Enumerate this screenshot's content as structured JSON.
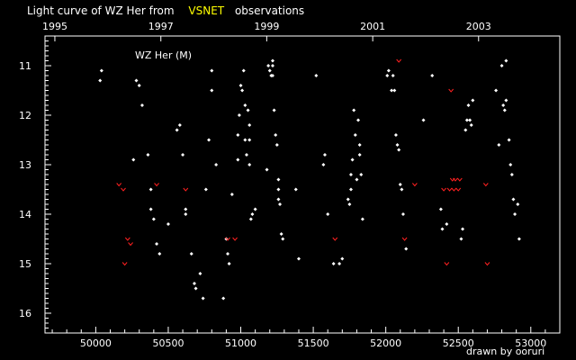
{
  "title": {
    "prefix": "Light curve of WZ Her from",
    "highlight": "VSNET",
    "suffix": "observations",
    "highlight_color": "#ffff00"
  },
  "credit": {
    "text": "drawn by ooruri",
    "color": "#00ffff"
  },
  "colors": {
    "frame": "#ffffff",
    "visual": "#ffffff",
    "fainter_than": "#ff2020"
  },
  "chart_data": {
    "type": "scatter",
    "title": "WZ Her (M)",
    "xlabel": "",
    "ylabel": "",
    "xlim": [
      49650,
      53200
    ],
    "ylim": [
      16.4,
      10.4
    ],
    "y_inverted": true,
    "x_ticks": [
      50000,
      50500,
      51000,
      51500,
      52000,
      52500,
      53000
    ],
    "x_tick_labels": [
      "50000",
      "50500",
      "51000",
      "51500",
      "52000",
      "52500",
      "53000"
    ],
    "y_ticks": [
      11,
      12,
      13,
      14,
      15,
      16
    ],
    "y_tick_labels": [
      "11",
      "12",
      "13",
      "14",
      "15",
      "16"
    ],
    "top_axis": {
      "ticks": [
        49718,
        50449,
        51179,
        51910,
        52640
      ],
      "labels": [
        "1995",
        "1997",
        "1999",
        "2001",
        "2003"
      ]
    },
    "grid": false,
    "legend": "none",
    "series": [
      {
        "kind": "visual",
        "color": "#ffffff",
        "points": [
          [
            50030,
            11.3
          ],
          [
            50040,
            11.1
          ],
          [
            50260,
            12.9
          ],
          [
            50280,
            11.3
          ],
          [
            50300,
            11.4
          ],
          [
            50320,
            11.8
          ],
          [
            50360,
            12.8
          ],
          [
            50380,
            13.5
          ],
          [
            50380,
            13.9
          ],
          [
            50400,
            14.1
          ],
          [
            50420,
            14.6
          ],
          [
            50440,
            14.8
          ],
          [
            50500,
            14.2
          ],
          [
            50560,
            12.3
          ],
          [
            50580,
            12.2
          ],
          [
            50600,
            12.8
          ],
          [
            50620,
            13.9
          ],
          [
            50620,
            14.0
          ],
          [
            50660,
            14.8
          ],
          [
            50680,
            15.4
          ],
          [
            50690,
            15.5
          ],
          [
            50720,
            15.2
          ],
          [
            50740,
            15.7
          ],
          [
            50760,
            13.5
          ],
          [
            50780,
            12.5
          ],
          [
            50800,
            11.5
          ],
          [
            50800,
            11.1
          ],
          [
            50830,
            13.0
          ],
          [
            50880,
            15.7
          ],
          [
            50900,
            14.5
          ],
          [
            50910,
            14.8
          ],
          [
            50920,
            15.0
          ],
          [
            50940,
            13.6
          ],
          [
            50980,
            12.9
          ],
          [
            50980,
            12.4
          ],
          [
            50990,
            12.0
          ],
          [
            51000,
            11.4
          ],
          [
            51010,
            11.5
          ],
          [
            51020,
            11.1
          ],
          [
            51030,
            12.5
          ],
          [
            51030,
            11.8
          ],
          [
            51040,
            12.8
          ],
          [
            51050,
            11.9
          ],
          [
            51060,
            12.5
          ],
          [
            51060,
            12.2
          ],
          [
            51060,
            13.0
          ],
          [
            51070,
            14.1
          ],
          [
            51080,
            14.0
          ],
          [
            51100,
            13.9
          ],
          [
            51180,
            13.1
          ],
          [
            51190,
            11.0
          ],
          [
            51200,
            11.1
          ],
          [
            51210,
            11.2
          ],
          [
            51220,
            10.9
          ],
          [
            51220,
            11.0
          ],
          [
            51220,
            11.2
          ],
          [
            51230,
            11.9
          ],
          [
            51240,
            12.4
          ],
          [
            51250,
            12.6
          ],
          [
            51260,
            13.5
          ],
          [
            51260,
            13.7
          ],
          [
            51260,
            13.3
          ],
          [
            51270,
            13.8
          ],
          [
            51280,
            14.4
          ],
          [
            51290,
            14.5
          ],
          [
            51380,
            13.5
          ],
          [
            51400,
            14.9
          ],
          [
            51520,
            11.2
          ],
          [
            51570,
            13.0
          ],
          [
            51580,
            12.8
          ],
          [
            51600,
            14.0
          ],
          [
            51640,
            15.0
          ],
          [
            51680,
            15.0
          ],
          [
            51700,
            14.9
          ],
          [
            51740,
            13.7
          ],
          [
            51750,
            13.8
          ],
          [
            51760,
            13.2
          ],
          [
            51760,
            13.5
          ],
          [
            51770,
            12.9
          ],
          [
            51780,
            11.9
          ],
          [
            51790,
            12.4
          ],
          [
            51800,
            13.3
          ],
          [
            51810,
            12.1
          ],
          [
            51820,
            12.6
          ],
          [
            51820,
            12.8
          ],
          [
            51830,
            13.2
          ],
          [
            51840,
            14.1
          ],
          [
            52010,
            11.2
          ],
          [
            52020,
            11.1
          ],
          [
            52040,
            11.5
          ],
          [
            52050,
            11.2
          ],
          [
            52060,
            11.5
          ],
          [
            52070,
            12.4
          ],
          [
            52080,
            12.6
          ],
          [
            52090,
            12.7
          ],
          [
            52100,
            13.4
          ],
          [
            52110,
            13.5
          ],
          [
            52120,
            14.0
          ],
          [
            52140,
            14.7
          ],
          [
            52260,
            12.1
          ],
          [
            52320,
            11.2
          ],
          [
            52380,
            13.9
          ],
          [
            52390,
            14.3
          ],
          [
            52420,
            14.2
          ],
          [
            52520,
            14.5
          ],
          [
            52530,
            14.3
          ],
          [
            52550,
            12.3
          ],
          [
            52560,
            12.1
          ],
          [
            52570,
            11.8
          ],
          [
            52580,
            12.1
          ],
          [
            52590,
            12.2
          ],
          [
            52600,
            11.7
          ],
          [
            52760,
            11.5
          ],
          [
            52780,
            12.6
          ],
          [
            52800,
            11.0
          ],
          [
            52810,
            11.8
          ],
          [
            52820,
            11.9
          ],
          [
            52830,
            10.9
          ],
          [
            52830,
            11.7
          ],
          [
            52850,
            12.5
          ],
          [
            52860,
            13.0
          ],
          [
            52870,
            13.2
          ],
          [
            52880,
            13.7
          ],
          [
            52890,
            14.0
          ],
          [
            52910,
            13.8
          ],
          [
            52920,
            14.5
          ]
        ]
      },
      {
        "kind": "fainter_than",
        "color": "#ff2020",
        "points": [
          [
            50160,
            13.4
          ],
          [
            50190,
            13.5
          ],
          [
            50200,
            15.0
          ],
          [
            50220,
            14.5
          ],
          [
            50240,
            14.6
          ],
          [
            50420,
            13.4
          ],
          [
            50620,
            13.5
          ],
          [
            50910,
            14.5
          ],
          [
            50960,
            14.5
          ],
          [
            51650,
            14.5
          ],
          [
            52090,
            10.9
          ],
          [
            52130,
            14.5
          ],
          [
            52200,
            13.4
          ],
          [
            52400,
            13.5
          ],
          [
            52420,
            15.0
          ],
          [
            52440,
            13.5
          ],
          [
            52450,
            11.5
          ],
          [
            52460,
            13.3
          ],
          [
            52470,
            13.5
          ],
          [
            52480,
            13.3
          ],
          [
            52500,
            13.5
          ],
          [
            52510,
            13.3
          ],
          [
            52690,
            13.4
          ],
          [
            52700,
            15.0
          ]
        ]
      }
    ]
  }
}
